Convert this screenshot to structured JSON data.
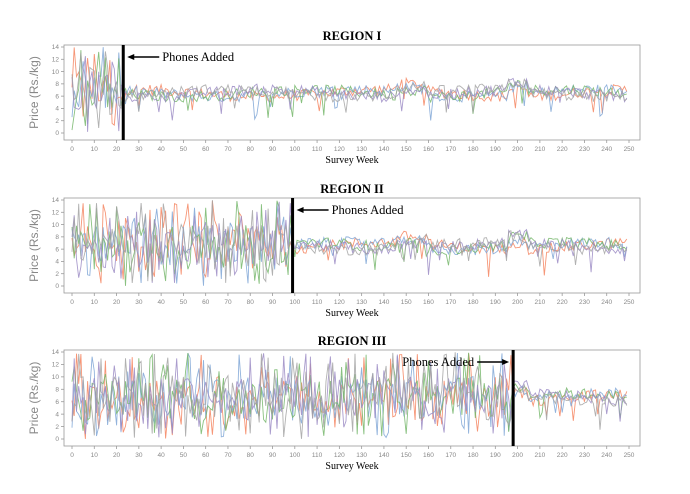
{
  "chart_data": [
    {
      "type": "line",
      "title": "REGION I",
      "xlabel": "Survey Week",
      "ylabel": "Price (Rs./kg)",
      "xticks": [
        "0",
        "10",
        "20",
        "30",
        "40",
        "50",
        "60",
        "70",
        "80",
        "90",
        "100",
        "110",
        "120",
        "130",
        "140",
        "150",
        "160",
        "170",
        "180",
        "190",
        "200",
        "210",
        "220",
        "230",
        "240",
        "250"
      ],
      "yticks": [
        "0",
        "2",
        "4",
        "6",
        "8",
        "10",
        "12",
        "14"
      ],
      "xlim": [
        0,
        250
      ],
      "ylim": [
        0,
        14
      ],
      "event_week": 23,
      "annotation": "Phones Added",
      "annotation_side": "right",
      "pre_level": [
        0,
        14
      ],
      "post_level": [
        5.5,
        7.5
      ],
      "colors": [
        "#f4845f",
        "#7fa6d6",
        "#74b66a",
        "#9b8bc4",
        "#a3a3a3"
      ]
    },
    {
      "type": "line",
      "title": "REGION II",
      "xlabel": "Survey Week",
      "ylabel": "Price (Rs./kg)",
      "xticks": [
        "0",
        "10",
        "20",
        "30",
        "40",
        "50",
        "60",
        "70",
        "80",
        "90",
        "100",
        "110",
        "120",
        "130",
        "140",
        "150",
        "160",
        "170",
        "180",
        "190",
        "200",
        "210",
        "220",
        "230",
        "240",
        "250"
      ],
      "yticks": [
        "0",
        "2",
        "4",
        "6",
        "8",
        "10",
        "12",
        "14"
      ],
      "xlim": [
        0,
        250
      ],
      "ylim": [
        0,
        14
      ],
      "event_week": 99,
      "annotation": "Phones Added",
      "annotation_side": "right",
      "pre_level": [
        0,
        14
      ],
      "post_level": [
        5.5,
        7.5
      ],
      "colors": [
        "#f4845f",
        "#7fa6d6",
        "#74b66a",
        "#9b8bc4",
        "#a3a3a3"
      ]
    },
    {
      "type": "line",
      "title": "REGION III",
      "xlabel": "Survey Week",
      "ylabel": "Price (Rs./kg)",
      "xticks": [
        "0",
        "10",
        "20",
        "30",
        "40",
        "50",
        "60",
        "70",
        "80",
        "90",
        "100",
        "110",
        "120",
        "130",
        "140",
        "150",
        "160",
        "170",
        "180",
        "190",
        "200",
        "210",
        "220",
        "230",
        "240",
        "250"
      ],
      "yticks": [
        "0",
        "2",
        "4",
        "6",
        "8",
        "10",
        "12",
        "14"
      ],
      "xlim": [
        0,
        250
      ],
      "ylim": [
        0,
        14
      ],
      "event_week": 198,
      "annotation": "Phones Added",
      "annotation_side": "left",
      "pre_level": [
        0,
        14
      ],
      "post_level": [
        5.5,
        8.0
      ],
      "colors": [
        "#f4845f",
        "#7fa6d6",
        "#74b66a",
        "#9b8bc4",
        "#a3a3a3"
      ]
    }
  ]
}
